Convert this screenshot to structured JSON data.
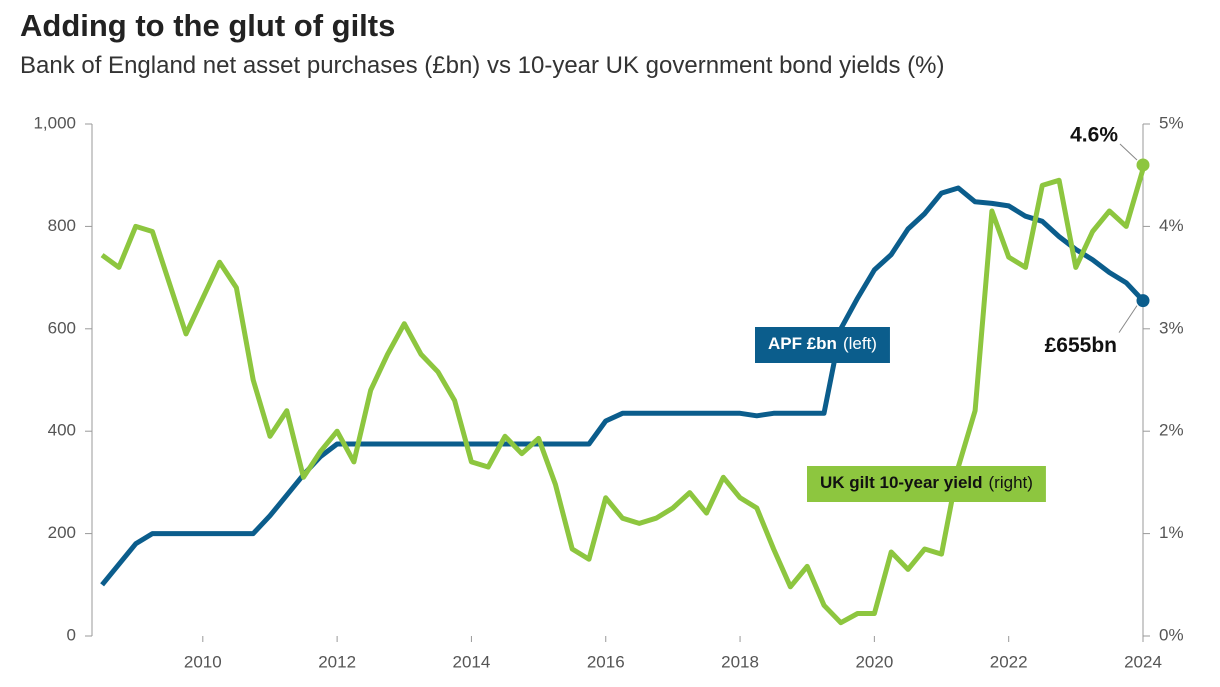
{
  "chart_data": {
    "type": "line",
    "title": "Adding to the glut of gilts",
    "subtitle": "Bank of England net asset purchases (£bn) vs 10-year UK government bond yields (%)",
    "x": [
      2008.5,
      2008.75,
      2009,
      2009.25,
      2009.5,
      2009.75,
      2010,
      2010.25,
      2010.5,
      2010.75,
      2011,
      2011.25,
      2011.5,
      2011.75,
      2012,
      2012.25,
      2012.5,
      2012.75,
      2013,
      2013.25,
      2013.5,
      2013.75,
      2014,
      2014.25,
      2014.5,
      2014.75,
      2015,
      2015.25,
      2015.5,
      2015.75,
      2016,
      2016.25,
      2016.5,
      2016.75,
      2017,
      2017.25,
      2017.5,
      2017.75,
      2018,
      2018.25,
      2018.5,
      2018.75,
      2019,
      2019.25,
      2019.5,
      2019.75,
      2020,
      2020.25,
      2020.5,
      2020.75,
      2021,
      2021.25,
      2021.5,
      2021.75,
      2022,
      2022.25,
      2022.5,
      2022.75,
      2023,
      2023.25,
      2023.5,
      2023.75,
      2024
    ],
    "series": [
      {
        "name": "APF £bn",
        "note": "(left)",
        "color": "#0b5d8c",
        "values": [
          100,
          140,
          180,
          200,
          200,
          200,
          200,
          200,
          200,
          200,
          235,
          275,
          315,
          350,
          375,
          375,
          375,
          375,
          375,
          375,
          375,
          375,
          375,
          375,
          375,
          375,
          375,
          375,
          375,
          375,
          420,
          435,
          435,
          435,
          435,
          435,
          435,
          435,
          435,
          430,
          435,
          435,
          435,
          435,
          600,
          660,
          715,
          745,
          795,
          825,
          865,
          875,
          848,
          845,
          840,
          820,
          810,
          780,
          755,
          735,
          710,
          690,
          655
        ]
      },
      {
        "name": "UK gilt 10-year yield",
        "note": "(right)",
        "color": "#8dc63f",
        "axis": "y2",
        "values": [
          3.72,
          3.6,
          4.0,
          3.95,
          3.45,
          2.95,
          3.3,
          3.65,
          3.4,
          2.5,
          1.95,
          2.2,
          1.55,
          1.8,
          2.0,
          1.7,
          2.4,
          2.75,
          3.05,
          2.75,
          2.58,
          2.3,
          1.7,
          1.65,
          1.95,
          1.78,
          1.93,
          1.48,
          0.85,
          0.75,
          1.35,
          1.15,
          1.1,
          1.15,
          1.25,
          1.4,
          1.2,
          1.55,
          1.35,
          1.25,
          0.85,
          0.48,
          0.68,
          0.3,
          0.13,
          0.22,
          0.22,
          0.82,
          0.65,
          0.85,
          0.8,
          1.65,
          2.2,
          4.15,
          3.7,
          3.6,
          4.4,
          4.45,
          3.6,
          3.95,
          4.15,
          4.0,
          4.56
        ]
      }
    ],
    "annotations": [
      {
        "text": "4.6%",
        "value": 4.6,
        "axis": "y2"
      },
      {
        "text": "£655bn",
        "value": 655
      }
    ],
    "xlim": [
      2008.35,
      2024
    ],
    "xticks": [
      2010,
      2012,
      2014,
      2016,
      2018,
      2020,
      2022,
      2024
    ],
    "ylim": [
      0,
      1000
    ],
    "yticks": [
      0,
      200,
      400,
      600,
      800,
      {
        "value": 1000,
        "label": "1,000"
      }
    ],
    "y2lim": [
      0,
      5
    ],
    "y2ticks": [
      {
        "value": 0,
        "label": "0%"
      },
      {
        "value": 1,
        "label": "1%"
      },
      {
        "value": 2,
        "label": "2%"
      },
      {
        "value": 3,
        "label": "3%"
      },
      {
        "value": 4,
        "label": "4%"
      },
      {
        "value": 5,
        "label": "5%"
      }
    ],
    "grid": false
  }
}
